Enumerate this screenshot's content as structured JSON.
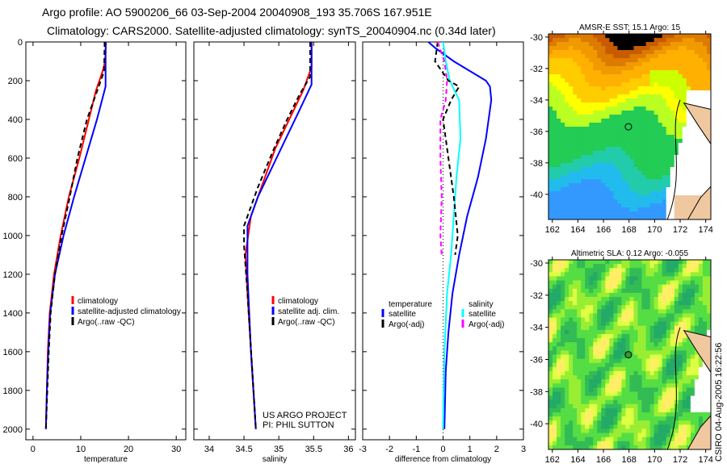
{
  "title_line1": "Argo profile: AO 5900206_66 03-Sep-2004 20040908_193 35.706S 167.951E",
  "title_line2": "Climatology: CARS2000. Satellite-adjusted climatology: synTS_20040904.nc (0.34d later)",
  "credit": "CSIRO 04-Aug-2005 16:22:56",
  "project_lines": [
    "US ARGO PROJECT",
    "PI: PHIL SUTTON"
  ],
  "colors": {
    "climatology": "#ff0000",
    "satellite": "#0000ff",
    "argo": "#000000",
    "sal_satellite": "#00ffff",
    "sal_argo": "#ff00ff"
  },
  "chart_data": [
    {
      "type": "line",
      "xlabel": "temperature",
      "xlim": [
        -1.5,
        32
      ],
      "ylim": [
        0,
        2055
      ],
      "y_reversed": true,
      "xticks": [
        "0",
        "10",
        "20",
        "30"
      ],
      "xtick_values": [
        0,
        10,
        20,
        30
      ],
      "yticks": [
        "0",
        "200",
        "400",
        "600",
        "800",
        "1000",
        "1200",
        "1400",
        "1600",
        "1800",
        "2000"
      ],
      "legend": {
        "placement": "lower-right",
        "entries": [
          "climatology",
          "satellite-adjusted climatology",
          "Argo(..raw -QC)"
        ]
      },
      "series": [
        {
          "name": "climatology",
          "color": "#ff0000",
          "dash": false,
          "points": [
            [
              15.3,
              0
            ],
            [
              15.1,
              100
            ],
            [
              14.6,
              150
            ],
            [
              13.2,
              250
            ],
            [
              11.7,
              400
            ],
            [
              9.7,
              600
            ],
            [
              7.5,
              800
            ],
            [
              5.8,
              1000
            ],
            [
              4.4,
              1200
            ],
            [
              3.5,
              1400
            ],
            [
              3.1,
              1600
            ],
            [
              2.9,
              1800
            ],
            [
              2.7,
              2000
            ]
          ]
        },
        {
          "name": "satellite-adjusted climatology",
          "color": "#0000ff",
          "dash": false,
          "points": [
            [
              15.2,
              0
            ],
            [
              15.2,
              230
            ],
            [
              13.4,
              400
            ],
            [
              11,
              600
            ],
            [
              8.6,
              800
            ],
            [
              6.4,
              1000
            ],
            [
              4.6,
              1200
            ],
            [
              3.6,
              1400
            ],
            [
              3.2,
              1600
            ],
            [
              2.9,
              1800
            ],
            [
              2.7,
              2000
            ]
          ]
        },
        {
          "name": "Argo(..raw -QC)",
          "color": "#000000",
          "dash": true,
          "points": [
            [
              15,
              0
            ],
            [
              14.9,
              150
            ],
            [
              14.2,
              200
            ],
            [
              11.3,
              400
            ],
            [
              9.3,
              600
            ],
            [
              7.7,
              800
            ],
            [
              6,
              1000
            ],
            [
              4.6,
              1200
            ],
            [
              3.7,
              1400
            ],
            [
              3.3,
              1600
            ],
            [
              3,
              1800
            ],
            [
              2.7,
              2000
            ]
          ]
        }
      ]
    },
    {
      "type": "line",
      "xlabel": "salinity",
      "xlim": [
        33.78,
        36.1
      ],
      "ylim": [
        0,
        2055
      ],
      "y_reversed": true,
      "xticks": [
        "34",
        "34.5",
        "35",
        "35.5",
        "36"
      ],
      "xtick_values": [
        34,
        34.5,
        35,
        35.5,
        36
      ],
      "legend": {
        "placement": "lower-right",
        "entries": [
          "climatology",
          "satellite adj. clim.",
          "Argo(..raw -QC)"
        ]
      },
      "series": [
        {
          "name": "climatology",
          "color": "#ff0000",
          "dash": false,
          "points": [
            [
              35.47,
              0
            ],
            [
              35.47,
              130
            ],
            [
              35.35,
              250
            ],
            [
              35.15,
              400
            ],
            [
              34.95,
              550
            ],
            [
              34.8,
              700
            ],
            [
              34.6,
              900
            ],
            [
              34.52,
              1100
            ],
            [
              34.55,
              1300
            ],
            [
              34.6,
              1600
            ],
            [
              34.67,
              2000
            ]
          ]
        },
        {
          "name": "satellite adj. clim.",
          "color": "#0000ff",
          "dash": false,
          "points": [
            [
              35.47,
              0
            ],
            [
              35.47,
              220
            ],
            [
              35.3,
              350
            ],
            [
              35.1,
              500
            ],
            [
              34.9,
              650
            ],
            [
              34.7,
              800
            ],
            [
              34.55,
              950
            ],
            [
              34.55,
              1200
            ],
            [
              34.6,
              1600
            ],
            [
              34.67,
              2000
            ]
          ]
        },
        {
          "name": "Argo(..raw -QC)",
          "color": "#000000",
          "dash": true,
          "points": [
            [
              35.45,
              0
            ],
            [
              35.45,
              180
            ],
            [
              35.3,
              270
            ],
            [
              35.12,
              400
            ],
            [
              34.92,
              560
            ],
            [
              34.7,
              750
            ],
            [
              34.5,
              950
            ],
            [
              34.5,
              1050
            ],
            [
              34.55,
              1300
            ],
            [
              34.62,
              1700
            ],
            [
              34.67,
              2000
            ]
          ]
        }
      ]
    },
    {
      "type": "line",
      "xlabel": "difference from climatology",
      "xlim": [
        -3,
        3
      ],
      "ylim": [
        0,
        2055
      ],
      "y_reversed": true,
      "xticks": [
        "-3",
        "-2",
        "-1",
        "0",
        "1",
        "2",
        "3"
      ],
      "xtick_values": [
        -3,
        -2,
        -1,
        0,
        1,
        2,
        3
      ],
      "legend": {
        "placement": "lower",
        "headers": [
          "temperature",
          "salinity"
        ],
        "entries": [
          "satellite",
          "Argo(-adj)",
          "satellite",
          "Argo(-adj)"
        ]
      },
      "series": [
        {
          "name": "temperature satellite",
          "color": "#0000ff",
          "dash": false,
          "points": [
            [
              -0.55,
              0
            ],
            [
              -0.3,
              30
            ],
            [
              0.4,
              100
            ],
            [
              1.6,
              200
            ],
            [
              1.75,
              230
            ],
            [
              1.8,
              300
            ],
            [
              1.6,
              500
            ],
            [
              1.3,
              700
            ],
            [
              0.9,
              900
            ],
            [
              0.6,
              1100
            ],
            [
              0.35,
              1300
            ],
            [
              0.2,
              1500
            ],
            [
              0.1,
              1700
            ],
            [
              0.05,
              2000
            ]
          ]
        },
        {
          "name": "salinity satellite",
          "color": "#00ffff",
          "dash": false,
          "points": [
            [
              0,
              0
            ],
            [
              0.1,
              100
            ],
            [
              0.25,
              200
            ],
            [
              0.6,
              300
            ],
            [
              0.65,
              500
            ],
            [
              0.5,
              700
            ],
            [
              0.4,
              900
            ],
            [
              0.3,
              1100
            ],
            [
              0.15,
              1300
            ],
            [
              0.05,
              1600
            ],
            [
              0,
              2000
            ]
          ]
        },
        {
          "name": "temperature Argo(-adj)",
          "color": "#000000",
          "dash": true,
          "points": [
            [
              -0.2,
              0
            ],
            [
              -0.3,
              100
            ],
            [
              0.2,
              200
            ],
            [
              0.6,
              230
            ],
            [
              0.3,
              300
            ],
            [
              0,
              400
            ],
            [
              0.2,
              600
            ],
            [
              0.4,
              800
            ],
            [
              0.55,
              1000
            ],
            [
              0.45,
              1100
            ]
          ]
        },
        {
          "name": "salinity Argo(-adj)",
          "color": "#ff00ff",
          "dash": true,
          "points": [
            [
              -0.2,
              0
            ],
            [
              0.05,
              100
            ],
            [
              0.15,
              200
            ],
            [
              0.1,
              300
            ],
            [
              -0.1,
              400
            ],
            [
              -0.1,
              600
            ],
            [
              -0.05,
              800
            ],
            [
              -0.1,
              1000
            ],
            [
              -0.05,
              1100
            ]
          ]
        }
      ]
    },
    {
      "type": "heatmap",
      "title": "AMSR-E SST: 15.1 Argo: 15",
      "xlim": [
        161.7,
        174.4
      ],
      "ylim": [
        -41.6,
        -29.8
      ],
      "xticks": [
        "162",
        "164",
        "166",
        "168",
        "170",
        "172",
        "174"
      ],
      "yticks": [
        "-30",
        "-32",
        "-34",
        "-36",
        "-38",
        "-40"
      ],
      "marker": [
        167.951,
        -35.706
      ]
    },
    {
      "type": "heatmap",
      "title": "Altimetric SLA: 0.12 Argo: -0.055",
      "xlim": [
        161.7,
        174.4
      ],
      "ylim": [
        -41.6,
        -29.8
      ],
      "xticks": [
        "162",
        "164",
        "166",
        "168",
        "170",
        "172",
        "174"
      ],
      "yticks": [
        "-30",
        "-32",
        "-34",
        "-36",
        "-38",
        "-40"
      ],
      "marker": [
        167.951,
        -35.706
      ]
    }
  ]
}
